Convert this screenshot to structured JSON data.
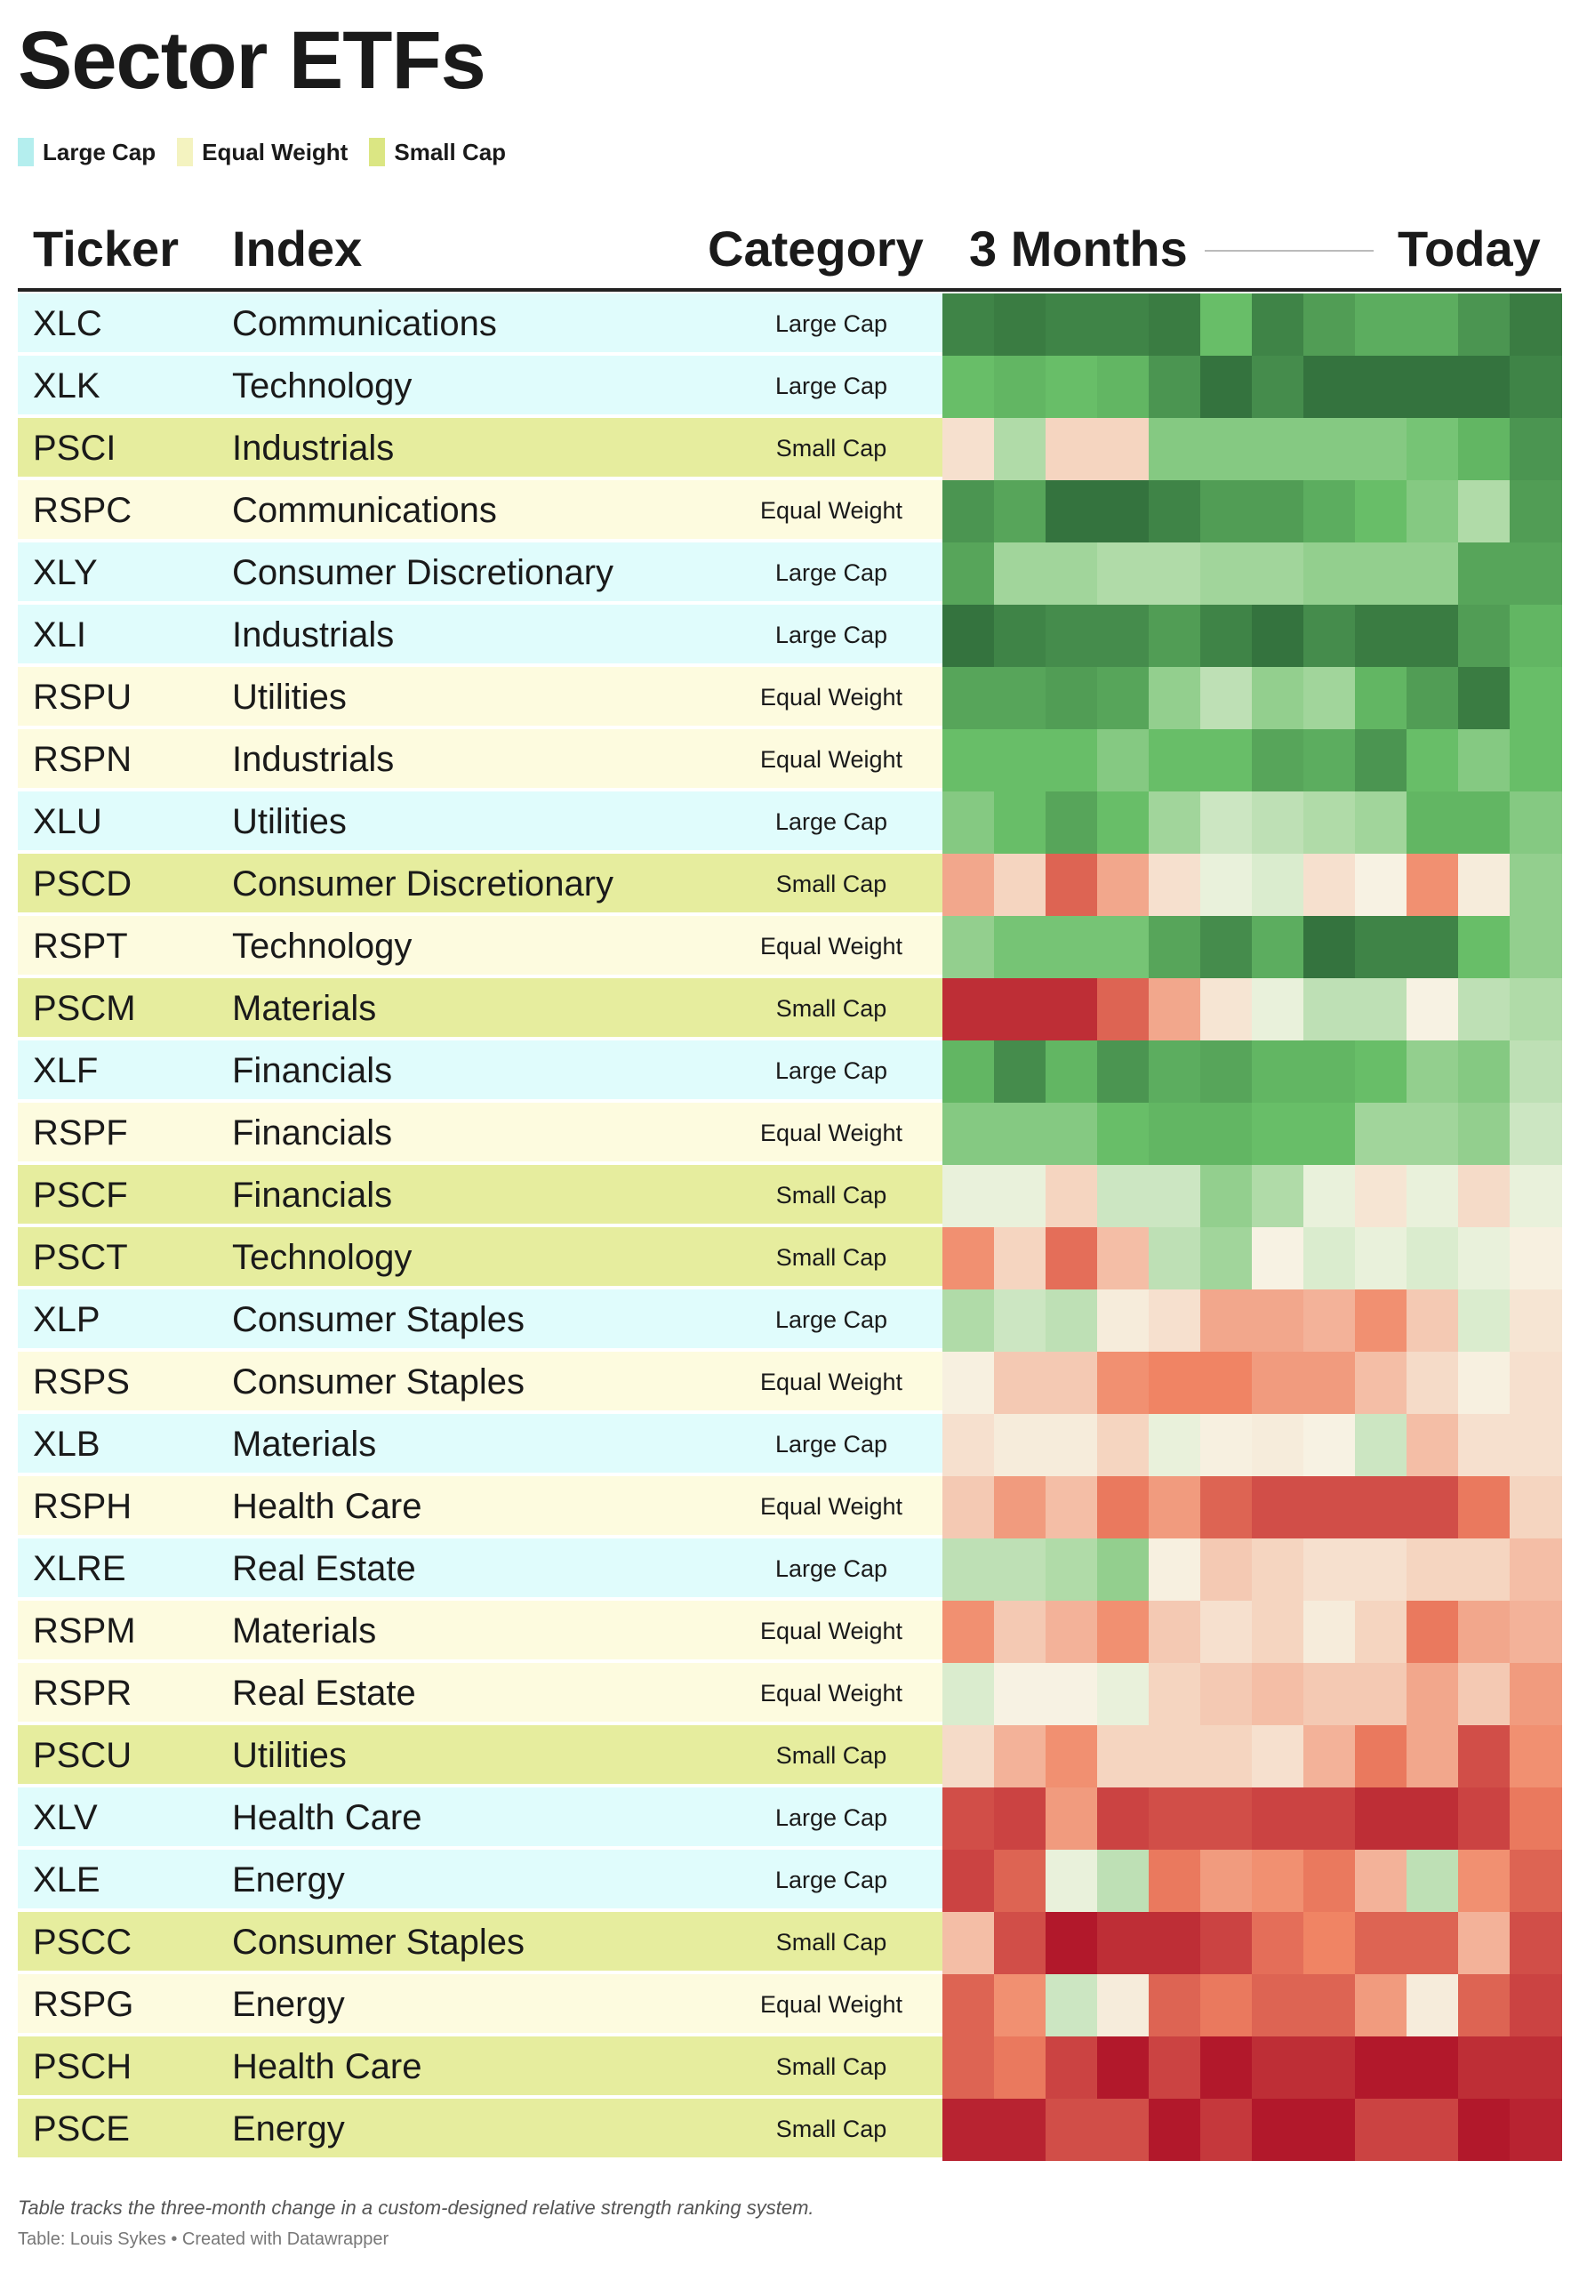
{
  "title": "Sector ETFs",
  "legend": [
    {
      "label": "Large Cap",
      "color": "#b4eeee"
    },
    {
      "label": "Equal Weight",
      "color": "#f4f3c0"
    },
    {
      "label": "Small Cap",
      "color": "#dbe683"
    }
  ],
  "headers": {
    "ticker": "Ticker",
    "index": "Index",
    "category": "Category",
    "trend_start": "3 Months",
    "trend_end": "Today"
  },
  "colors": {
    "row_bg": {
      "Large Cap": "#e0fcfc",
      "Equal Weight": "#fdfbdf",
      "Small Cap": "#e6ed9e"
    },
    "scale_negative": "#b2182b",
    "scale_neutral": "#f7f7e8",
    "scale_positive": "#2e6b39"
  },
  "chart_data": {
    "type": "heatmap",
    "title": "Sector ETFs",
    "columns_count": 12,
    "value_range": [
      -1,
      1
    ],
    "value_meaning": "relative strength ranking change, -1 = weakest (red), +1 = strongest (green)",
    "rows": [
      {
        "ticker": "XLC",
        "index": "Communications",
        "category": "Large Cap",
        "values": [
          0.85,
          0.9,
          0.85,
          0.85,
          0.9,
          0.5,
          0.85,
          0.7,
          0.6,
          0.6,
          0.75,
          0.9
        ]
      },
      {
        "ticker": "XLK",
        "index": "Technology",
        "category": "Large Cap",
        "values": [
          0.5,
          0.55,
          0.5,
          0.55,
          0.75,
          0.95,
          0.8,
          0.95,
          0.95,
          0.95,
          0.95,
          0.85
        ]
      },
      {
        "ticker": "PSCI",
        "index": "Industrials",
        "category": "Small Cap",
        "values": [
          -0.1,
          0.25,
          -0.15,
          -0.15,
          0.4,
          0.4,
          0.4,
          0.4,
          0.4,
          0.45,
          0.55,
          0.75
        ]
      },
      {
        "ticker": "RSPC",
        "index": "Communications",
        "category": "Equal Weight",
        "values": [
          0.75,
          0.65,
          0.95,
          0.95,
          0.85,
          0.7,
          0.7,
          0.6,
          0.5,
          0.4,
          0.25,
          0.7
        ]
      },
      {
        "ticker": "XLY",
        "index": "Consumer Discretionary",
        "category": "Large Cap",
        "values": [
          0.65,
          0.3,
          0.3,
          0.25,
          0.25,
          0.3,
          0.3,
          0.35,
          0.35,
          0.35,
          0.65,
          0.65
        ]
      },
      {
        "ticker": "XLI",
        "index": "Industrials",
        "category": "Large Cap",
        "values": [
          0.95,
          0.85,
          0.8,
          0.8,
          0.7,
          0.85,
          0.95,
          0.8,
          0.9,
          0.9,
          0.7,
          0.55
        ]
      },
      {
        "ticker": "RSPU",
        "index": "Utilities",
        "category": "Equal Weight",
        "values": [
          0.65,
          0.65,
          0.7,
          0.65,
          0.35,
          0.2,
          0.35,
          0.3,
          0.55,
          0.7,
          0.9,
          0.5
        ]
      },
      {
        "ticker": "RSPN",
        "index": "Industrials",
        "category": "Equal Weight",
        "values": [
          0.5,
          0.5,
          0.5,
          0.4,
          0.5,
          0.5,
          0.65,
          0.6,
          0.75,
          0.5,
          0.4,
          0.5
        ]
      },
      {
        "ticker": "XLU",
        "index": "Utilities",
        "category": "Large Cap",
        "values": [
          0.4,
          0.5,
          0.65,
          0.5,
          0.3,
          0.15,
          0.2,
          0.25,
          0.3,
          0.55,
          0.55,
          0.4
        ]
      },
      {
        "ticker": "PSCD",
        "index": "Consumer Discretionary",
        "category": "Small Cap",
        "values": [
          -0.35,
          -0.15,
          -0.65,
          -0.35,
          -0.1,
          0.05,
          0.1,
          -0.1,
          -0.02,
          -0.45,
          -0.05,
          0.35
        ]
      },
      {
        "ticker": "RSPT",
        "index": "Technology",
        "category": "Equal Weight",
        "values": [
          0.35,
          0.45,
          0.45,
          0.45,
          0.65,
          0.8,
          0.6,
          0.95,
          0.85,
          0.85,
          0.5,
          0.35
        ]
      },
      {
        "ticker": "PSCM",
        "index": "Materials",
        "category": "Small Cap",
        "values": [
          -0.9,
          -0.9,
          -0.9,
          -0.65,
          -0.35,
          -0.08,
          0.05,
          0.2,
          0.2,
          -0.02,
          0.2,
          0.25
        ]
      },
      {
        "ticker": "XLF",
        "index": "Financials",
        "category": "Large Cap",
        "values": [
          0.55,
          0.8,
          0.55,
          0.75,
          0.6,
          0.65,
          0.55,
          0.55,
          0.5,
          0.35,
          0.4,
          0.2
        ]
      },
      {
        "ticker": "RSPF",
        "index": "Financials",
        "category": "Equal Weight",
        "values": [
          0.4,
          0.4,
          0.4,
          0.5,
          0.55,
          0.55,
          0.5,
          0.5,
          0.3,
          0.3,
          0.35,
          0.15
        ]
      },
      {
        "ticker": "PSCF",
        "index": "Financials",
        "category": "Small Cap",
        "values": [
          0.05,
          0.05,
          -0.15,
          0.15,
          0.15,
          0.35,
          0.25,
          0.05,
          -0.08,
          0.05,
          -0.12,
          0.05
        ]
      },
      {
        "ticker": "PSCT",
        "index": "Technology",
        "category": "Small Cap",
        "values": [
          -0.45,
          -0.15,
          -0.6,
          -0.25,
          0.2,
          0.3,
          -0.02,
          0.1,
          0.05,
          0.1,
          0.05,
          -0.03
        ]
      },
      {
        "ticker": "XLP",
        "index": "Consumer Staples",
        "category": "Large Cap",
        "values": [
          0.25,
          0.15,
          0.2,
          -0.05,
          -0.1,
          -0.35,
          -0.35,
          -0.3,
          -0.45,
          -0.2,
          0.1,
          -0.08
        ]
      },
      {
        "ticker": "RSPS",
        "index": "Consumer Staples",
        "category": "Equal Weight",
        "values": [
          -0.03,
          -0.2,
          -0.2,
          -0.45,
          -0.5,
          -0.5,
          -0.4,
          -0.4,
          -0.25,
          -0.12,
          -0.03,
          -0.1
        ]
      },
      {
        "ticker": "XLB",
        "index": "Materials",
        "category": "Large Cap",
        "values": [
          -0.1,
          -0.05,
          -0.05,
          -0.15,
          0.05,
          -0.03,
          -0.05,
          -0.02,
          0.15,
          -0.25,
          -0.1,
          -0.1
        ]
      },
      {
        "ticker": "RSPH",
        "index": "Health Care",
        "category": "Equal Weight",
        "values": [
          -0.2,
          -0.4,
          -0.25,
          -0.55,
          -0.4,
          -0.65,
          -0.75,
          -0.75,
          -0.75,
          -0.75,
          -0.55,
          -0.15
        ]
      },
      {
        "ticker": "XLRE",
        "index": "Real Estate",
        "category": "Large Cap",
        "values": [
          0.2,
          0.2,
          0.25,
          0.35,
          -0.03,
          -0.2,
          -0.15,
          -0.1,
          -0.1,
          -0.15,
          -0.15,
          -0.25
        ]
      },
      {
        "ticker": "RSPM",
        "index": "Materials",
        "category": "Equal Weight",
        "values": [
          -0.45,
          -0.2,
          -0.3,
          -0.45,
          -0.2,
          -0.1,
          -0.15,
          -0.05,
          -0.15,
          -0.55,
          -0.35,
          -0.3
        ]
      },
      {
        "ticker": "RSPR",
        "index": "Real Estate",
        "category": "Equal Weight",
        "values": [
          0.1,
          -0.02,
          -0.02,
          0.05,
          -0.15,
          -0.2,
          -0.25,
          -0.2,
          -0.2,
          -0.35,
          -0.2,
          -0.4
        ]
      },
      {
        "ticker": "PSCU",
        "index": "Utilities",
        "category": "Small Cap",
        "values": [
          -0.12,
          -0.3,
          -0.45,
          -0.15,
          -0.15,
          -0.15,
          -0.1,
          -0.3,
          -0.55,
          -0.35,
          -0.75,
          -0.45
        ]
      },
      {
        "ticker": "XLV",
        "index": "Health Care",
        "category": "Large Cap",
        "values": [
          -0.75,
          -0.8,
          -0.4,
          -0.8,
          -0.75,
          -0.75,
          -0.8,
          -0.8,
          -0.9,
          -0.9,
          -0.8,
          -0.55
        ]
      },
      {
        "ticker": "XLE",
        "index": "Energy",
        "category": "Large Cap",
        "values": [
          -0.8,
          -0.65,
          0.05,
          0.2,
          -0.55,
          -0.4,
          -0.45,
          -0.55,
          -0.3,
          0.2,
          -0.45,
          -0.65
        ]
      },
      {
        "ticker": "PSCC",
        "index": "Consumer Staples",
        "category": "Small Cap",
        "values": [
          -0.25,
          -0.75,
          -1,
          -0.9,
          -0.9,
          -0.8,
          -0.6,
          -0.5,
          -0.65,
          -0.65,
          -0.3,
          -0.75
        ]
      },
      {
        "ticker": "RSPG",
        "index": "Energy",
        "category": "Equal Weight",
        "values": [
          -0.65,
          -0.45,
          0.15,
          -0.05,
          -0.65,
          -0.55,
          -0.65,
          -0.65,
          -0.4,
          -0.05,
          -0.65,
          -0.8
        ]
      },
      {
        "ticker": "PSCH",
        "index": "Health Care",
        "category": "Small Cap",
        "values": [
          -0.65,
          -0.55,
          -0.8,
          -1,
          -0.8,
          -1,
          -0.9,
          -0.9,
          -1,
          -1,
          -0.9,
          -0.9
        ]
      },
      {
        "ticker": "PSCE",
        "index": "Energy",
        "category": "Small Cap",
        "values": [
          -0.95,
          -0.95,
          -0.75,
          -0.75,
          -1,
          -0.85,
          -1,
          -1,
          -0.8,
          -0.8,
          -1,
          -0.95
        ]
      }
    ]
  },
  "footnote": "Table tracks the three-month change in a custom-designed relative strength ranking system.",
  "credit": "Table: Louis Sykes • Created with Datawrapper"
}
